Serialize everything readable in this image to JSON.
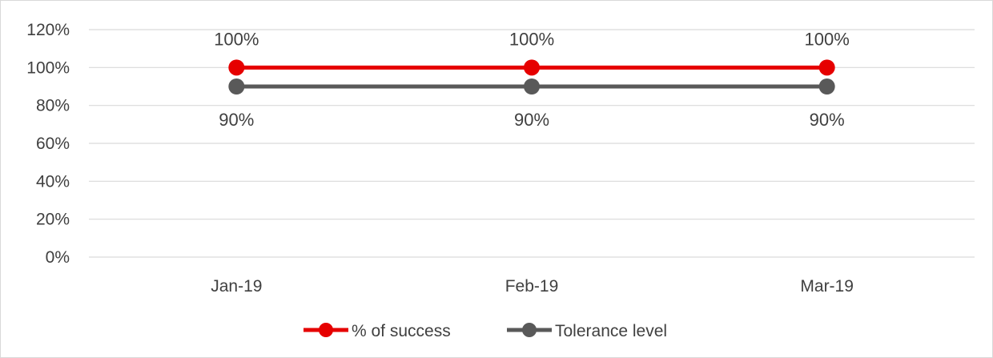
{
  "chart_data": {
    "type": "line",
    "categories": [
      "Jan-19",
      "Feb-19",
      "Mar-19"
    ],
    "series": [
      {
        "name": "% of success",
        "values": [
          100,
          100,
          100
        ],
        "color": "#e60000",
        "data_labels": [
          "100%",
          "100%",
          "100%"
        ],
        "label_position": "above"
      },
      {
        "name": "Tolerance level",
        "values": [
          90,
          90,
          90
        ],
        "color": "#595959",
        "data_labels": [
          "90%",
          "90%",
          "90%"
        ],
        "label_position": "below"
      }
    ],
    "y_ticks": [
      {
        "value": 0,
        "label": "0%"
      },
      {
        "value": 20,
        "label": "20%"
      },
      {
        "value": 40,
        "label": "40%"
      },
      {
        "value": 60,
        "label": "60%"
      },
      {
        "value": 80,
        "label": "80%"
      },
      {
        "value": 100,
        "label": "100%"
      },
      {
        "value": 120,
        "label": "120%"
      }
    ],
    "ylim": [
      0,
      120
    ],
    "title": "",
    "xlabel": "",
    "ylabel": "",
    "grid": "horizontal",
    "legend_position": "bottom-center",
    "gridline_color": "#d9d9d9"
  }
}
